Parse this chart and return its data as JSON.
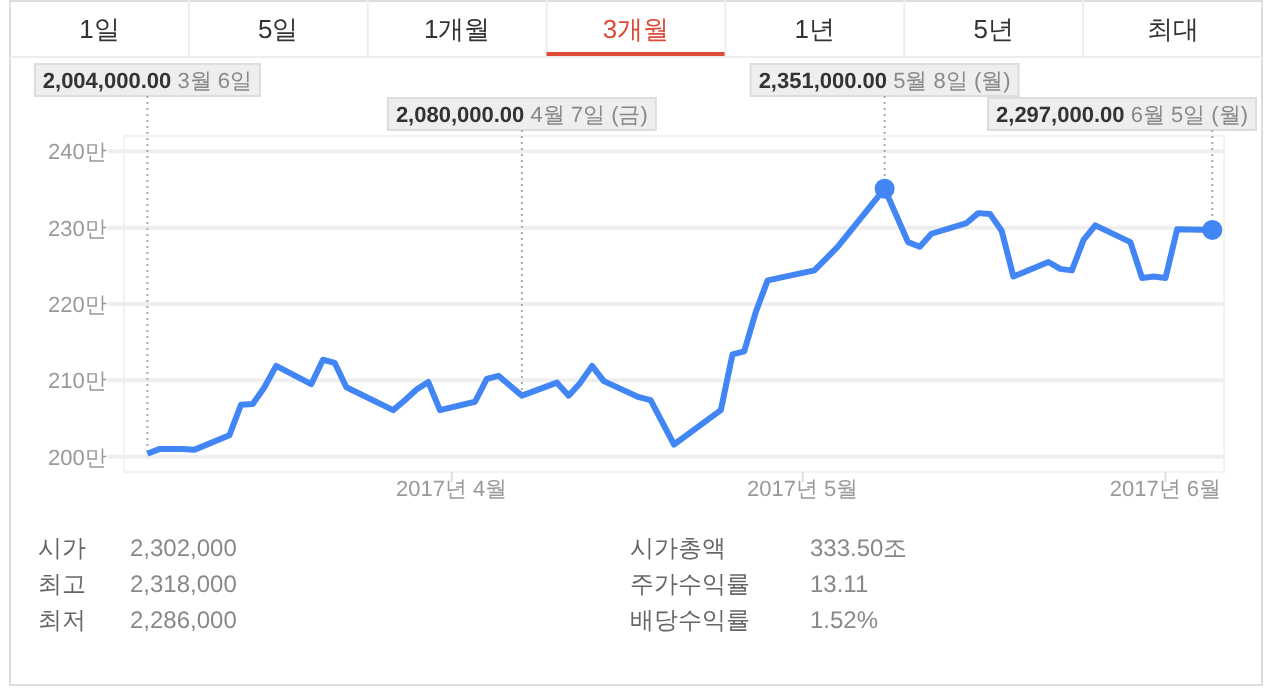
{
  "chart_data": {
    "type": "line",
    "color": "#4285f4",
    "x": [
      "2017-03-06",
      "2017-03-07",
      "2017-03-09",
      "2017-03-10",
      "2017-03-13",
      "2017-03-14",
      "2017-03-15",
      "2017-03-16",
      "2017-03-17",
      "2017-03-20",
      "2017-03-21",
      "2017-03-22",
      "2017-03-23",
      "2017-03-27",
      "2017-03-28",
      "2017-03-29",
      "2017-03-30",
      "2017-03-31",
      "2017-04-03",
      "2017-04-04",
      "2017-04-05",
      "2017-04-06",
      "2017-04-07",
      "2017-04-10",
      "2017-04-11",
      "2017-04-12",
      "2017-04-13",
      "2017-04-14",
      "2017-04-17",
      "2017-04-18",
      "2017-04-20",
      "2017-04-24",
      "2017-04-25",
      "2017-04-26",
      "2017-04-27",
      "2017-04-28",
      "2017-05-02",
      "2017-05-04",
      "2017-05-08",
      "2017-05-10",
      "2017-05-11",
      "2017-05-12",
      "2017-05-15",
      "2017-05-16",
      "2017-05-17",
      "2017-05-18",
      "2017-05-19",
      "2017-05-22",
      "2017-05-23",
      "2017-05-24",
      "2017-05-25",
      "2017-05-26",
      "2017-05-29",
      "2017-05-30",
      "2017-05-31",
      "2017-06-01",
      "2017-06-02",
      "2017-06-05"
    ],
    "values": [
      200.4,
      201.0,
      201.0,
      200.9,
      202.8,
      206.8,
      206.9,
      209.1,
      211.9,
      209.5,
      212.7,
      212.3,
      209.1,
      206.1,
      207.4,
      208.8,
      209.8,
      206.1,
      207.2,
      210.2,
      210.6,
      209.3,
      208.0,
      209.7,
      208.0,
      209.7,
      211.9,
      209.9,
      207.8,
      207.4,
      201.6,
      206.1,
      213.4,
      213.8,
      219.0,
      223.1,
      224.4,
      227.5,
      235.1,
      228.1,
      227.5,
      229.2,
      230.6,
      231.9,
      231.8,
      229.6,
      223.6,
      225.5,
      224.6,
      224.4,
      228.4,
      230.3,
      228.1,
      223.4,
      223.6,
      223.4,
      229.8,
      229.7
    ],
    "xlim": [
      "2017-03-04",
      "2017-06-06"
    ],
    "xticks": [
      {
        "value": "2017-04-01",
        "label": "2017년 4월"
      },
      {
        "value": "2017-05-01",
        "label": "2017년 5월"
      },
      {
        "value": "2017-06-01",
        "label": "2017년 6월"
      }
    ],
    "ylim": [
      198,
      242
    ],
    "yticks": [
      {
        "value": 200,
        "label": "200만"
      },
      {
        "value": 210,
        "label": "210만"
      },
      {
        "value": 220,
        "label": "220만"
      },
      {
        "value": 230,
        "label": "230만"
      },
      {
        "value": 240,
        "label": "240만"
      }
    ],
    "grid": "y",
    "marker": "none",
    "line_style": "solid",
    "annotations": [
      {
        "text": "2,004,000.00 3월 6일",
        "x": "2017-03-06",
        "y": 200.4
      },
      {
        "text": "2,080,000.00 4월 7일 (금)",
        "x": "2017-04-07",
        "y": 208.0
      },
      {
        "text": "2,351,000.00 5월 8일 (월)",
        "x": "2017-05-08",
        "y": 235.1
      },
      {
        "text": "2,297,000.00 6월 5일 (월)",
        "x": "2017-06-05",
        "y": 229.7
      },
      "1일",
      "5일",
      "1개월",
      "3개월",
      "1년",
      "5년",
      "최대",
      "시가 2,302,000",
      "최고 2,318,000",
      "최저 2,286,000",
      "시가총액 333.50조",
      "주가수익률 13.11",
      "배당수익률 1.52%"
    ]
  }
}
